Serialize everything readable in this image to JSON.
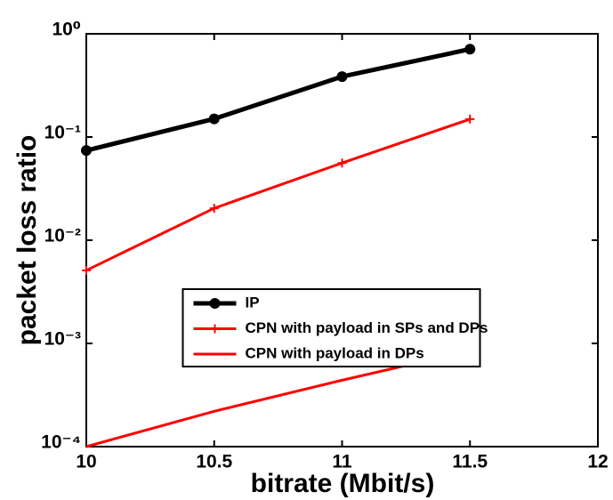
{
  "chart_data": {
    "type": "line",
    "xlabel": "bitrate (Mbit/s)",
    "ylabel": "packet loss ratio",
    "x": [
      10,
      10.5,
      11,
      11.5
    ],
    "series": [
      {
        "name": "IP",
        "color": "#000000",
        "marker": "circle",
        "values": [
          0.074,
          0.15,
          0.385,
          0.71
        ]
      },
      {
        "name": "CPN with payload in SPs and DPs",
        "color": "#ff0000",
        "marker": "plus",
        "values": [
          0.0051,
          0.0204,
          0.056,
          0.149
        ]
      },
      {
        "name": "CPN with payload in DPs",
        "color": "#ff0000",
        "marker": "none",
        "values": [
          0.0001,
          0.00022,
          0.00044,
          0.00085
        ]
      }
    ],
    "xlim": [
      10,
      12
    ],
    "xticks": [
      10,
      10.5,
      11,
      11.5,
      12
    ],
    "ylim": [
      0.0001,
      1
    ],
    "yscale": "log",
    "yticks": [
      {
        "value": 0.0001,
        "label": "10⁻⁴"
      },
      {
        "value": 0.001,
        "label": "10⁻³"
      },
      {
        "value": 0.01,
        "label": "10⁻²"
      },
      {
        "value": 0.1,
        "label": "10⁻¹"
      },
      {
        "value": 1,
        "label": "10⁰"
      }
    ],
    "grid": false,
    "legend": "center"
  }
}
